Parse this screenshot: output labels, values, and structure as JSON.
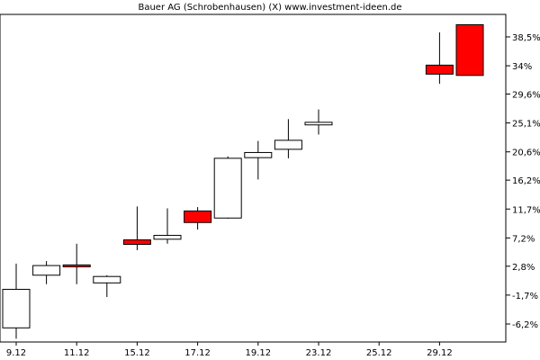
{
  "chart_data": {
    "type": "candlestick",
    "title": "Bauer AG (Schrobenhausen) (X) www.investment-ideen.de",
    "y_unit": "%",
    "ylim": [
      -9.0,
      42.0
    ],
    "y_ticks": [
      "38,5%",
      "34%",
      "29,6%",
      "25,1%",
      "20,6%",
      "16,2%",
      "11,7%",
      "7,2%",
      "2,8%",
      "-1,7%",
      "-6,2%"
    ],
    "y_tick_values": [
      38.5,
      34.0,
      29.6,
      25.1,
      20.6,
      16.2,
      11.7,
      7.2,
      2.8,
      -1.7,
      -6.2
    ],
    "x_ticks": [
      "9.12",
      "11.12",
      "15.12",
      "17.12",
      "19.12",
      "23.12",
      "25.12",
      "29.12"
    ],
    "grid": false,
    "colors": {
      "up": "#ffffff",
      "down": "#ff0000",
      "outline": "#000000",
      "wick": "#000000"
    },
    "candles": [
      {
        "slot": 0,
        "open": -6.8,
        "close": -0.8,
        "high": 3.2,
        "low": -8.5
      },
      {
        "slot": 1,
        "open": 1.4,
        "close": 2.9,
        "high": 3.6,
        "low": 0.0
      },
      {
        "slot": 2,
        "open": 3.0,
        "close": 2.7,
        "high": 6.3,
        "low": 0.0
      },
      {
        "slot": 3,
        "open": 0.2,
        "close": 1.2,
        "high": 1.4,
        "low": -2.0
      },
      {
        "slot": 4,
        "open": 6.9,
        "close": 6.2,
        "high": 12.1,
        "low": 5.3
      },
      {
        "slot": 5,
        "open": 7.0,
        "close": 7.6,
        "high": 11.8,
        "low": 6.3
      },
      {
        "slot": 6,
        "open": 11.4,
        "close": 9.6,
        "high": 12.0,
        "low": 8.5
      },
      {
        "slot": 7,
        "open": 10.3,
        "close": 19.6,
        "high": 19.9,
        "low": 10.2
      },
      {
        "slot": 8,
        "open": 19.7,
        "close": 20.5,
        "high": 22.3,
        "low": 16.3
      },
      {
        "slot": 9,
        "open": 21.0,
        "close": 22.4,
        "high": 25.7,
        "low": 19.6
      },
      {
        "slot": 10,
        "open": 24.8,
        "close": 25.2,
        "high": 27.2,
        "low": 23.3
      },
      {
        "slot": 14,
        "open": 34.1,
        "close": 32.7,
        "high": 39.2,
        "low": 31.2
      },
      {
        "slot": 15,
        "open": 40.4,
        "close": 32.5,
        "high": 40.4,
        "low": 32.5
      }
    ]
  }
}
